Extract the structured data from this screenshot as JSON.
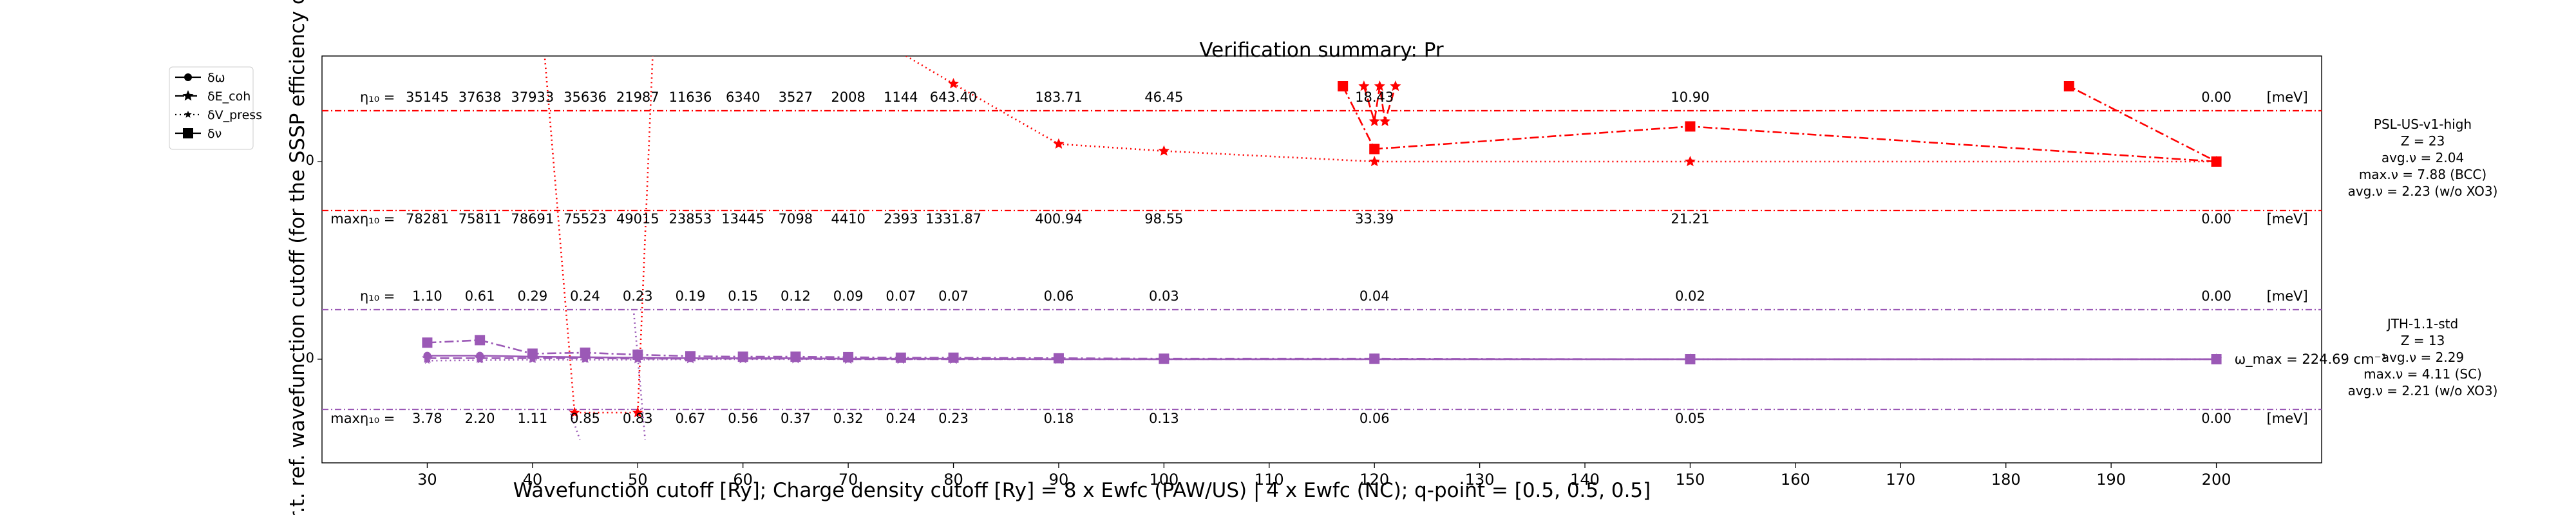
{
  "chart_data": {
    "type": "line",
    "title": "Verification summary: Pr",
    "xlabel": "Wavefunction cutoff [Ry]; Charge density cutoff [Ry] = 8 x Ewfc (PAW/US) | 4 x Ewfc (NC); q-point = [0.5, 0.5, 0.5]",
    "ylabel": "w.r.t. ref. wavefunction cutoff (for the SSSP efficiency crit",
    "xlim": [
      20,
      210
    ],
    "x_ticks": [
      30,
      40,
      50,
      60,
      70,
      80,
      90,
      100,
      110,
      120,
      130,
      140,
      150,
      160,
      170,
      180,
      190,
      200
    ],
    "cutoffs": [
      30,
      35,
      40,
      45,
      50,
      55,
      60,
      65,
      70,
      75,
      80,
      90,
      100,
      120,
      150,
      200
    ],
    "y_tick_label": "0",
    "unit_label": "[meV]",
    "eta_label": "η₁₀ =",
    "max_eta_label": "maxη₁₀ =",
    "legend": {
      "placement": "upper-left-outside",
      "entries": [
        {
          "label": "δω",
          "linestyle": "solid",
          "marker": "circle"
        },
        {
          "label": "δE_coh",
          "linestyle": "dashed",
          "marker": "star"
        },
        {
          "label": "δV_press",
          "linestyle": "dotted",
          "marker": "star-small"
        },
        {
          "label": "δν",
          "linestyle": "dashdot",
          "marker": "square"
        }
      ]
    },
    "panels": [
      {
        "name": "PSL-US-v1-high",
        "color": "#ff0000",
        "info": [
          "PSL-US-v1-high",
          "Z = 23",
          "avg.ν = 2.04",
          "max.ν = 7.88 (BCC)",
          "avg.ν = 2.23 (w/o XO3)"
        ],
        "eta": [
          "35145",
          "37638",
          "37933",
          "35636",
          "21987",
          "11636",
          "6340",
          "3527",
          "2008",
          "1144",
          "643.40",
          "183.71",
          "46.45",
          "18.43",
          "10.90",
          "0.00"
        ],
        "max_eta": [
          "78281",
          "75811",
          "78691",
          "75523",
          "49015",
          "23853",
          "13445",
          "7098",
          "4410",
          "2393",
          "1331.87",
          "400.94",
          "98.55",
          "33.39",
          "21.21",
          "0.00"
        ],
        "series": [
          {
            "name": "δV_press",
            "style": "dotted",
            "marker": "star",
            "x": [
              40,
              44,
              50,
              52,
              80,
              90,
              100,
              120,
              150,
              200
            ],
            "y": [
              5.0,
              -5.0,
              -5.0,
              5.0,
              1.55,
              0.35,
              0.21,
              0.0,
              0.0,
              0.0
            ]
          },
          {
            "name": "δE_coh",
            "style": "dashed",
            "marker": "star",
            "x": [
              119,
              120,
              120.5,
              121,
              122
            ],
            "y": [
              1.5,
              0.8,
              1.5,
              0.8,
              1.5
            ]
          },
          {
            "name": "δν",
            "style": "dashdot",
            "marker": "square",
            "x": [
              117,
              120,
              150,
              200,
              186
            ],
            "y": [
              1.5,
              0.25,
              0.7,
              0.0,
              1.5
            ]
          }
        ]
      },
      {
        "name": "JTH-1.1-std",
        "color": "#9b59b6",
        "info": [
          "JTH-1.1-std",
          "Z = 13",
          "avg.ν = 2.29",
          "max.ν = 4.11 (SC)",
          "avg.ν = 2.21 (w/o XO3)"
        ],
        "omega_max": "ω_max = 224.69 cm⁻¹",
        "eta": [
          "1.10",
          "0.61",
          "0.29",
          "0.24",
          "0.23",
          "0.19",
          "0.15",
          "0.12",
          "0.09",
          "0.07",
          "0.07",
          "0.06",
          "0.03",
          "0.04",
          "0.02",
          "0.00"
        ],
        "max_eta": [
          "3.78",
          "2.20",
          "1.11",
          "0.85",
          "0.83",
          "0.67",
          "0.56",
          "0.37",
          "0.32",
          "0.24",
          "0.23",
          "0.18",
          "0.13",
          "0.06",
          "0.05",
          "0.00"
        ],
        "series": [
          {
            "name": "δω",
            "style": "solid",
            "marker": "circle",
            "x": [
              30,
              35,
              40,
              45,
              50,
              55,
              60,
              65,
              70,
              75,
              80,
              90,
              100,
              120,
              150,
              200
            ],
            "y": [
              0.07,
              0.07,
              0.05,
              0.04,
              0.03,
              0.02,
              0.02,
              0.02,
              0.01,
              0.01,
              0.01,
              0.0,
              0.0,
              0.0,
              0.0,
              0.0
            ]
          },
          {
            "name": "δE_coh",
            "style": "dashed",
            "marker": "star",
            "x": [
              30,
              35,
              40,
              45,
              50,
              55,
              60,
              65,
              70,
              75,
              80,
              90,
              100,
              120,
              150,
              200
            ],
            "y": [
              0.02,
              0.02,
              0.02,
              0.02,
              0.01,
              0.01,
              0.01,
              0.01,
              0.0,
              0.0,
              0.0,
              0.0,
              0.0,
              0.0,
              0.0,
              0.0
            ]
          },
          {
            "name": "δV_press",
            "style": "dotted",
            "marker": "star-small",
            "x": [
              30,
              35,
              40,
              45,
              50,
              55,
              60,
              65,
              70,
              75,
              80,
              90,
              100,
              120,
              150,
              200
            ],
            "y": [
              -0.03,
              -0.02,
              -0.01,
              -0.01,
              -0.01,
              0.0,
              0.0,
              0.0,
              0.0,
              0.0,
              0.0,
              0.0,
              0.0,
              0.0,
              0.0,
              0.0
            ]
          },
          {
            "name": "δν",
            "style": "dashdot",
            "marker": "square",
            "x": [
              30,
              35,
              40,
              45,
              50,
              55,
              60,
              65,
              70,
              75,
              80,
              90,
              100,
              120,
              150,
              200
            ],
            "y": [
              0.33,
              0.38,
              0.11,
              0.13,
              0.09,
              0.06,
              0.05,
              0.05,
              0.04,
              0.03,
              0.03,
              0.02,
              0.01,
              0.01,
              0.0,
              0.0
            ]
          }
        ],
        "extra_series": [
          {
            "name": "δV_press",
            "style": "dotted",
            "x": [
              43.5,
              44.5
            ],
            "y": [
              -1.0,
              -1.6
            ]
          },
          {
            "name": "δV_press",
            "style": "dotted",
            "x": [
              49.6,
              50.7
            ],
            "y": [
              1.0,
              -1.6
            ]
          }
        ]
      }
    ]
  }
}
